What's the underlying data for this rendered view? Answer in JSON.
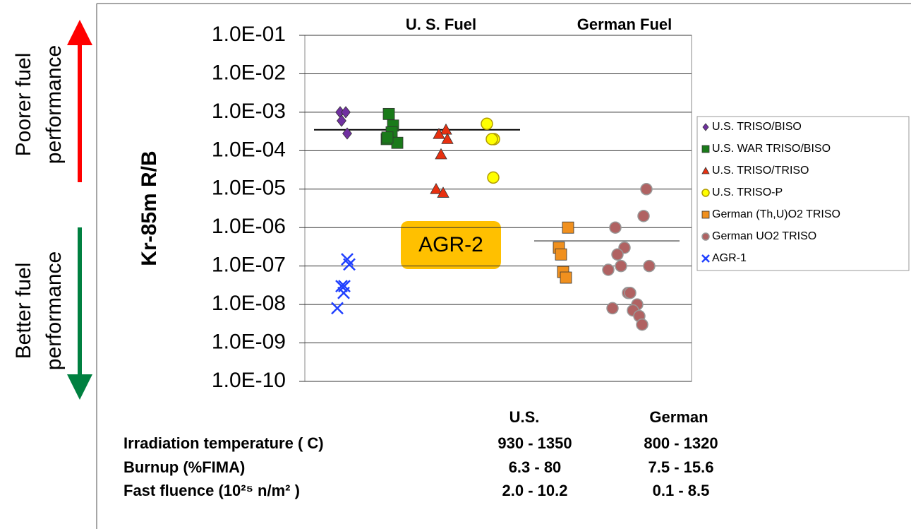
{
  "chart_data": {
    "type": "scatter",
    "y_label": "Kr-85m R/B",
    "log_y": true,
    "ylim": [
      1e-10,
      0.1
    ],
    "yticks": [
      {
        "value": 0.1,
        "label": "1.0E-01"
      },
      {
        "value": 0.01,
        "label": "1.0E-02"
      },
      {
        "value": 0.001,
        "label": "1.0E-03"
      },
      {
        "value": 0.0001,
        "label": "1.0E-04"
      },
      {
        "value": 1e-05,
        "label": "1.0E-05"
      },
      {
        "value": 1e-06,
        "label": "1.0E-06"
      },
      {
        "value": 1e-07,
        "label": "1.0E-07"
      },
      {
        "value": 1e-08,
        "label": "1.0E-08"
      },
      {
        "value": 1e-09,
        "label": "1.0E-09"
      },
      {
        "value": 1e-10,
        "label": "1.0E-10"
      }
    ],
    "grid": true,
    "groups": [
      "U. S. Fuel",
      "German Fuel"
    ],
    "group_means": [
      0.00035,
      4.5e-07
    ],
    "series": [
      {
        "name": "U.S. TRISO/BISO",
        "color": "#7030a0",
        "marker": "diamond",
        "values": [
          0.001,
          0.001,
          0.0006,
          0.00028
        ]
      },
      {
        "name": "U.S. WAR TRISO/BISO",
        "color": "#1a7a1a",
        "marker": "square",
        "values": [
          0.0009,
          0.00045,
          0.0003,
          0.0002,
          0.00016,
          0.00022
        ]
      },
      {
        "name": "U.S. TRISO/TRISO",
        "color": "#e83010",
        "marker": "triangle",
        "values": [
          0.00035,
          0.00027,
          0.0002,
          8e-05,
          1e-05,
          8e-06
        ]
      },
      {
        "name": "U.S. TRISO-P",
        "color": "#ffff00",
        "marker": "circle",
        "values": [
          0.0005,
          0.0002,
          0.0002,
          2e-05
        ]
      },
      {
        "name": "German (Th,U)O2 TRISO",
        "color": "#f0901e",
        "marker": "square",
        "values": [
          1e-06,
          3e-07,
          2e-07,
          7e-08,
          5e-08
        ]
      },
      {
        "name": "German UO2 TRISO",
        "color": "#b06262",
        "marker": "circle",
        "values": [
          1e-05,
          2e-06,
          1e-06,
          3e-07,
          2e-07,
          1e-07,
          1e-07,
          8e-08,
          2e-08,
          2e-08,
          1e-08,
          8e-09,
          7e-09,
          5e-09,
          3e-09
        ]
      },
      {
        "name": "AGR-1",
        "color": "#2040ff",
        "marker": "x",
        "values": [
          1.5e-07,
          1.1e-07,
          3e-08,
          3e-08,
          2e-08,
          8e-09
        ]
      }
    ],
    "legend": "right",
    "annotation": "AGR-2",
    "poorer_label": [
      "Poorer fuel",
      "performance"
    ],
    "better_label": [
      "Better fuel",
      "performance"
    ],
    "table": {
      "header": [
        "U.S.",
        "German"
      ],
      "rows": [
        [
          "Irradiation temperature ( C)",
          "930 - 1350",
          "800 - 1320"
        ],
        [
          "Burnup (%FIMA)",
          "6.3 - 80",
          "7.5 - 15.6"
        ],
        [
          "Fast fluence (10²⁵ n/m² )",
          "2.0 - 10.2",
          "0.1 - 8.5"
        ]
      ]
    }
  }
}
